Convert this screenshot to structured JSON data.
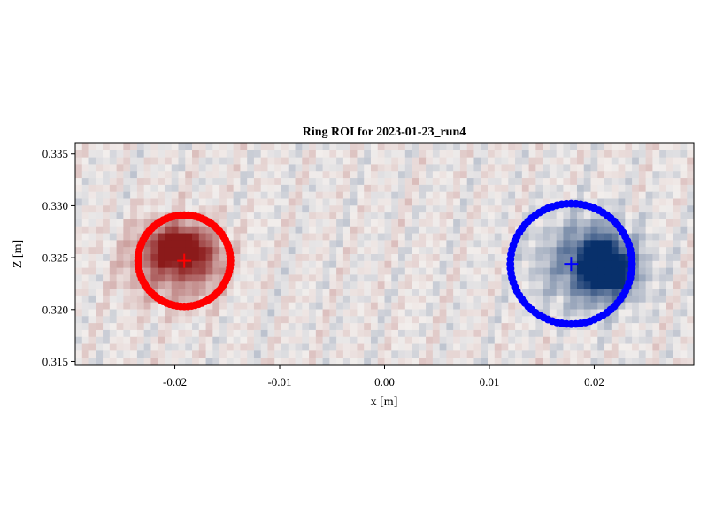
{
  "chart_data": {
    "type": "heatmap",
    "title": "Ring ROI for 2023-01-23_run4",
    "xlabel": "x [m]",
    "ylabel": "Z [m]",
    "xlim": [
      -0.0295,
      0.0295
    ],
    "ylim": [
      0.3147,
      0.336
    ],
    "xticks": [
      -0.02,
      -0.01,
      0.0,
      0.01,
      0.02
    ],
    "xtick_labels": [
      "-0.02",
      "-0.01",
      "0.00",
      "0.01",
      "0.02"
    ],
    "yticks": [
      0.315,
      0.32,
      0.325,
      0.33,
      0.335
    ],
    "ytick_labels": [
      "0.315",
      "0.320",
      "0.325",
      "0.330",
      "0.335"
    ],
    "colormap": "diverging red-white-blue",
    "colors": {
      "positive": "#8b1a1a",
      "negative": "#08306b",
      "neutral": "#f2eeec"
    },
    "heatmap_blobs": [
      {
        "x": -0.02,
        "z": 0.326,
        "sx": 0.0016,
        "sz": 0.0014,
        "amp": 1.0
      },
      {
        "x": -0.0205,
        "z": 0.3245,
        "sx": 0.003,
        "sz": 0.0026,
        "amp": 0.55
      },
      {
        "x": -0.017,
        "z": 0.325,
        "sx": 0.0015,
        "sz": 0.002,
        "amp": 0.4
      },
      {
        "x": 0.0205,
        "z": 0.3243,
        "sx": 0.0015,
        "sz": 0.0018,
        "amp": -1.0
      },
      {
        "x": 0.0195,
        "z": 0.3245,
        "sx": 0.0034,
        "sz": 0.003,
        "amp": -0.55
      },
      {
        "x": 0.0225,
        "z": 0.3235,
        "sx": 0.0012,
        "sz": 0.0015,
        "amp": -0.5
      }
    ],
    "rings": [
      {
        "name": "",
        "color": "#ff0000",
        "center": [
          -0.0191,
          0.3247
        ],
        "radius": 0.0044,
        "marker_count": 80
      },
      {
        "name": "",
        "color": "#0000ff",
        "center": [
          0.0178,
          0.3244
        ],
        "radius": 0.0058,
        "marker_count": 80
      }
    ],
    "centroids": [
      {
        "color": "#ff0000",
        "x": -0.0191,
        "z": 0.3247
      },
      {
        "color": "#0000ff",
        "x": 0.0178,
        "z": 0.3244
      }
    ],
    "grid": false
  }
}
